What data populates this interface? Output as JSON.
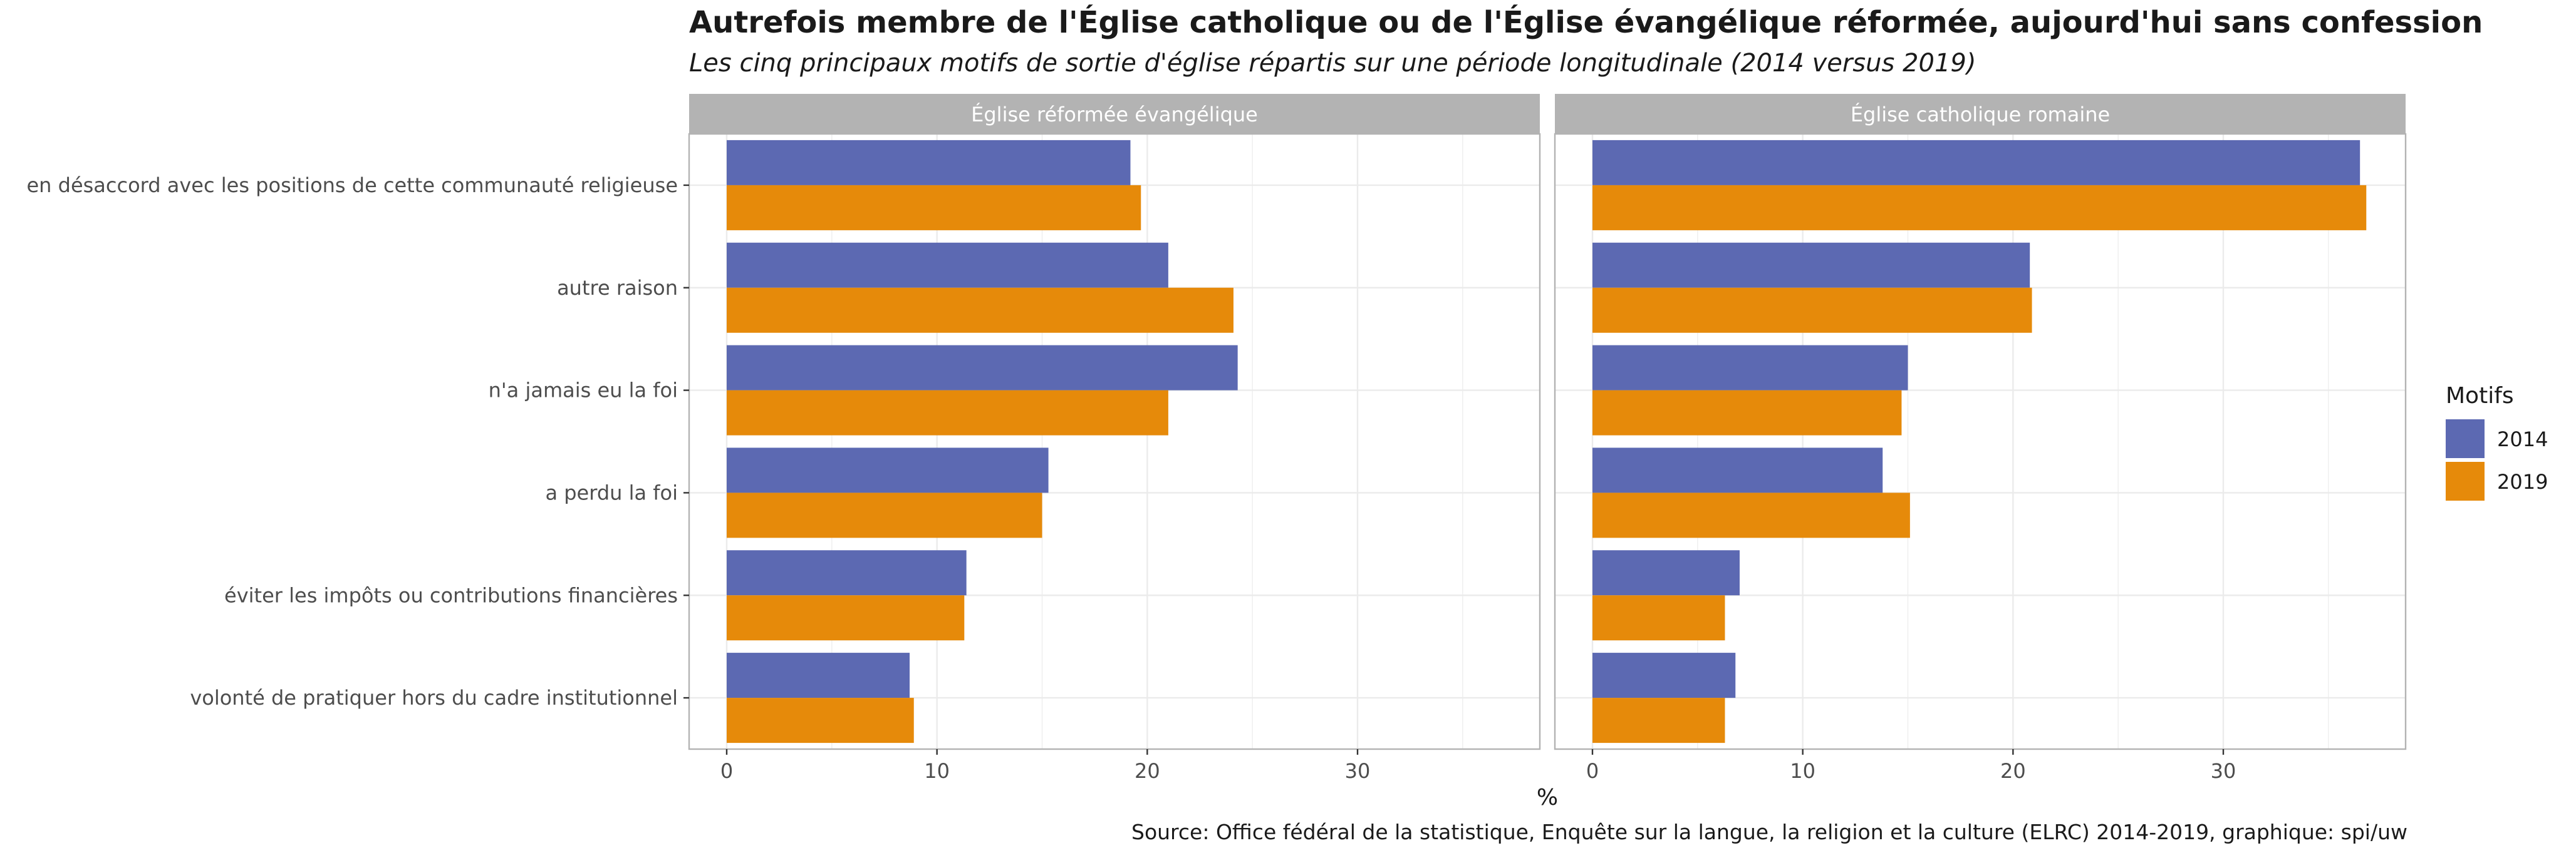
{
  "chart_data": {
    "type": "bar",
    "orientation": "horizontal",
    "title": "Autrefois membre de l'Église catholique ou de l'Église évangélique réformée, aujourd'hui sans confession",
    "subtitle": "Les cinq principaux motifs de sortie d'église répartis sur une période longitudinale (2014 versus 2019)",
    "caption": "Source: Office fédéral de la statistique, Enquête sur la langue, la religion et la culture (ELRC) 2014-2019, graphique: spi/uw",
    "xlabel": "%",
    "ylabel": "",
    "xlim": [
      0,
      38
    ],
    "xticks": [
      0,
      10,
      20,
      30
    ],
    "grid": true,
    "legend": {
      "title": "Motifs",
      "position": "right"
    },
    "categories": [
      "en désaccord avec les positions de cette communauté religieuse",
      "autre raison",
      "n'a jamais eu la foi",
      "a perdu la foi",
      "éviter les impôts ou contributions financières",
      "volonté de pratiquer hors du cadre institutionnel"
    ],
    "colors": {
      "2014": "#5c69b2",
      "2019": "#e68a0a"
    },
    "panels": [
      {
        "name": "Église réformée évangélique",
        "series": [
          {
            "name": "2014",
            "values": [
              19.2,
              21.0,
              24.3,
              15.3,
              11.4,
              8.7
            ]
          },
          {
            "name": "2019",
            "values": [
              19.7,
              24.1,
              21.0,
              15.0,
              11.3,
              8.9
            ]
          }
        ]
      },
      {
        "name": "Église catholique romaine",
        "series": [
          {
            "name": "2014",
            "values": [
              36.5,
              20.8,
              15.0,
              13.8,
              7.0,
              6.8
            ]
          },
          {
            "name": "2019",
            "values": [
              36.8,
              20.9,
              14.7,
              15.1,
              6.3,
              6.3
            ]
          }
        ]
      }
    ]
  }
}
